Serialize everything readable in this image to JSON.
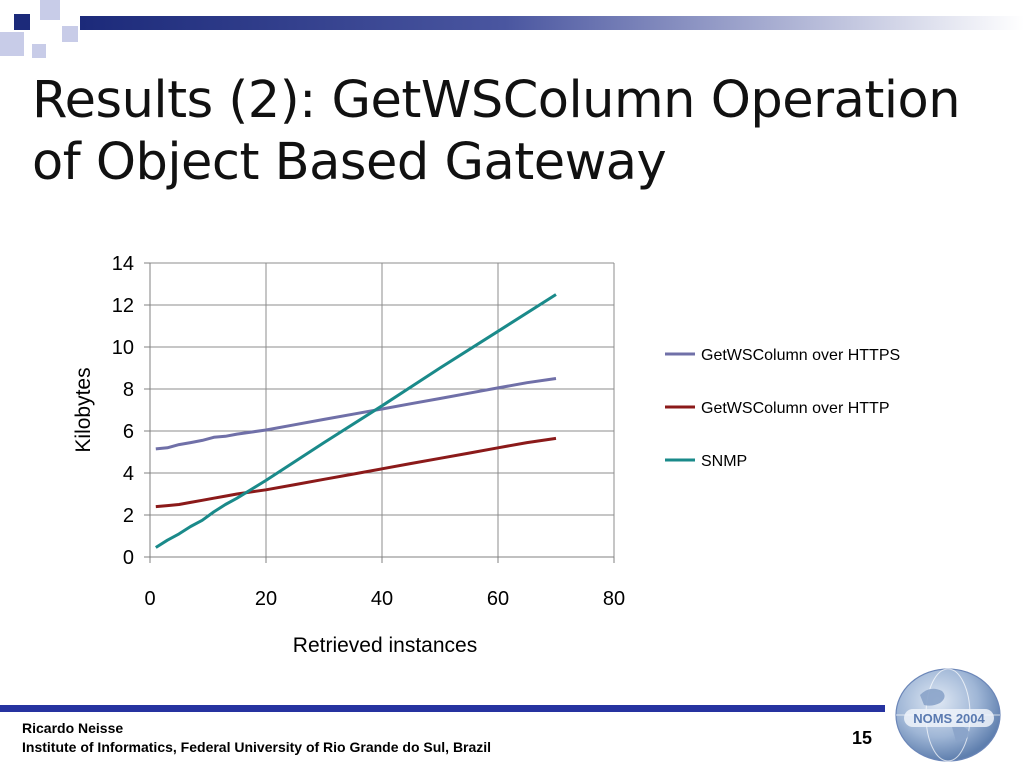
{
  "slide": {
    "title": "Results (2): GetWSColumn Operation of Object Based Gateway",
    "footer": {
      "author": "Ricardo Neisse",
      "institution": "Institute of Informatics, Federal University of Rio Grande do Sul, Brazil",
      "page_number": "15"
    },
    "logo_text": "NOMS 2004",
    "colors": {
      "accent": "#1c2a7a",
      "footer_line": "#2633a0",
      "square_light": "#c8cce8"
    }
  },
  "chart_data": {
    "type": "line",
    "title": "",
    "xlabel": "Retrieved instances",
    "ylabel": "Kilobytes",
    "xlim": [
      0,
      80
    ],
    "ylim": [
      0,
      14
    ],
    "xticks": [
      0,
      20,
      40,
      60,
      80
    ],
    "yticks": [
      0,
      2,
      4,
      6,
      8,
      10,
      12,
      14
    ],
    "grid": true,
    "legend_position": "right",
    "series": [
      {
        "name": "GetWSColumn over HTTPS",
        "color": "#7070a8",
        "x": [
          1,
          3,
          5,
          7,
          9,
          11,
          13,
          15,
          20,
          25,
          30,
          35,
          40,
          45,
          50,
          55,
          60,
          65,
          70
        ],
        "y": [
          5.15,
          5.2,
          5.35,
          5.45,
          5.55,
          5.7,
          5.75,
          5.85,
          6.05,
          6.3,
          6.55,
          6.8,
          7.05,
          7.3,
          7.55,
          7.8,
          8.05,
          8.3,
          8.5
        ]
      },
      {
        "name": "GetWSColumn over HTTP",
        "color": "#8b1a1a",
        "x": [
          1,
          3,
          5,
          7,
          9,
          11,
          13,
          15,
          20,
          25,
          30,
          35,
          40,
          45,
          50,
          55,
          60,
          65,
          70
        ],
        "y": [
          2.4,
          2.45,
          2.5,
          2.6,
          2.7,
          2.8,
          2.9,
          3.0,
          3.2,
          3.45,
          3.7,
          3.95,
          4.2,
          4.45,
          4.7,
          4.95,
          5.2,
          5.45,
          5.65
        ]
      },
      {
        "name": "SNMP",
        "color": "#1a8a8a",
        "x": [
          1,
          3,
          5,
          7,
          9,
          11,
          13,
          15,
          20,
          30,
          40,
          50,
          60,
          70
        ],
        "y": [
          0.45,
          0.8,
          1.1,
          1.45,
          1.75,
          2.15,
          2.5,
          2.8,
          3.65,
          5.45,
          7.2,
          9.0,
          10.75,
          12.5
        ]
      }
    ]
  }
}
